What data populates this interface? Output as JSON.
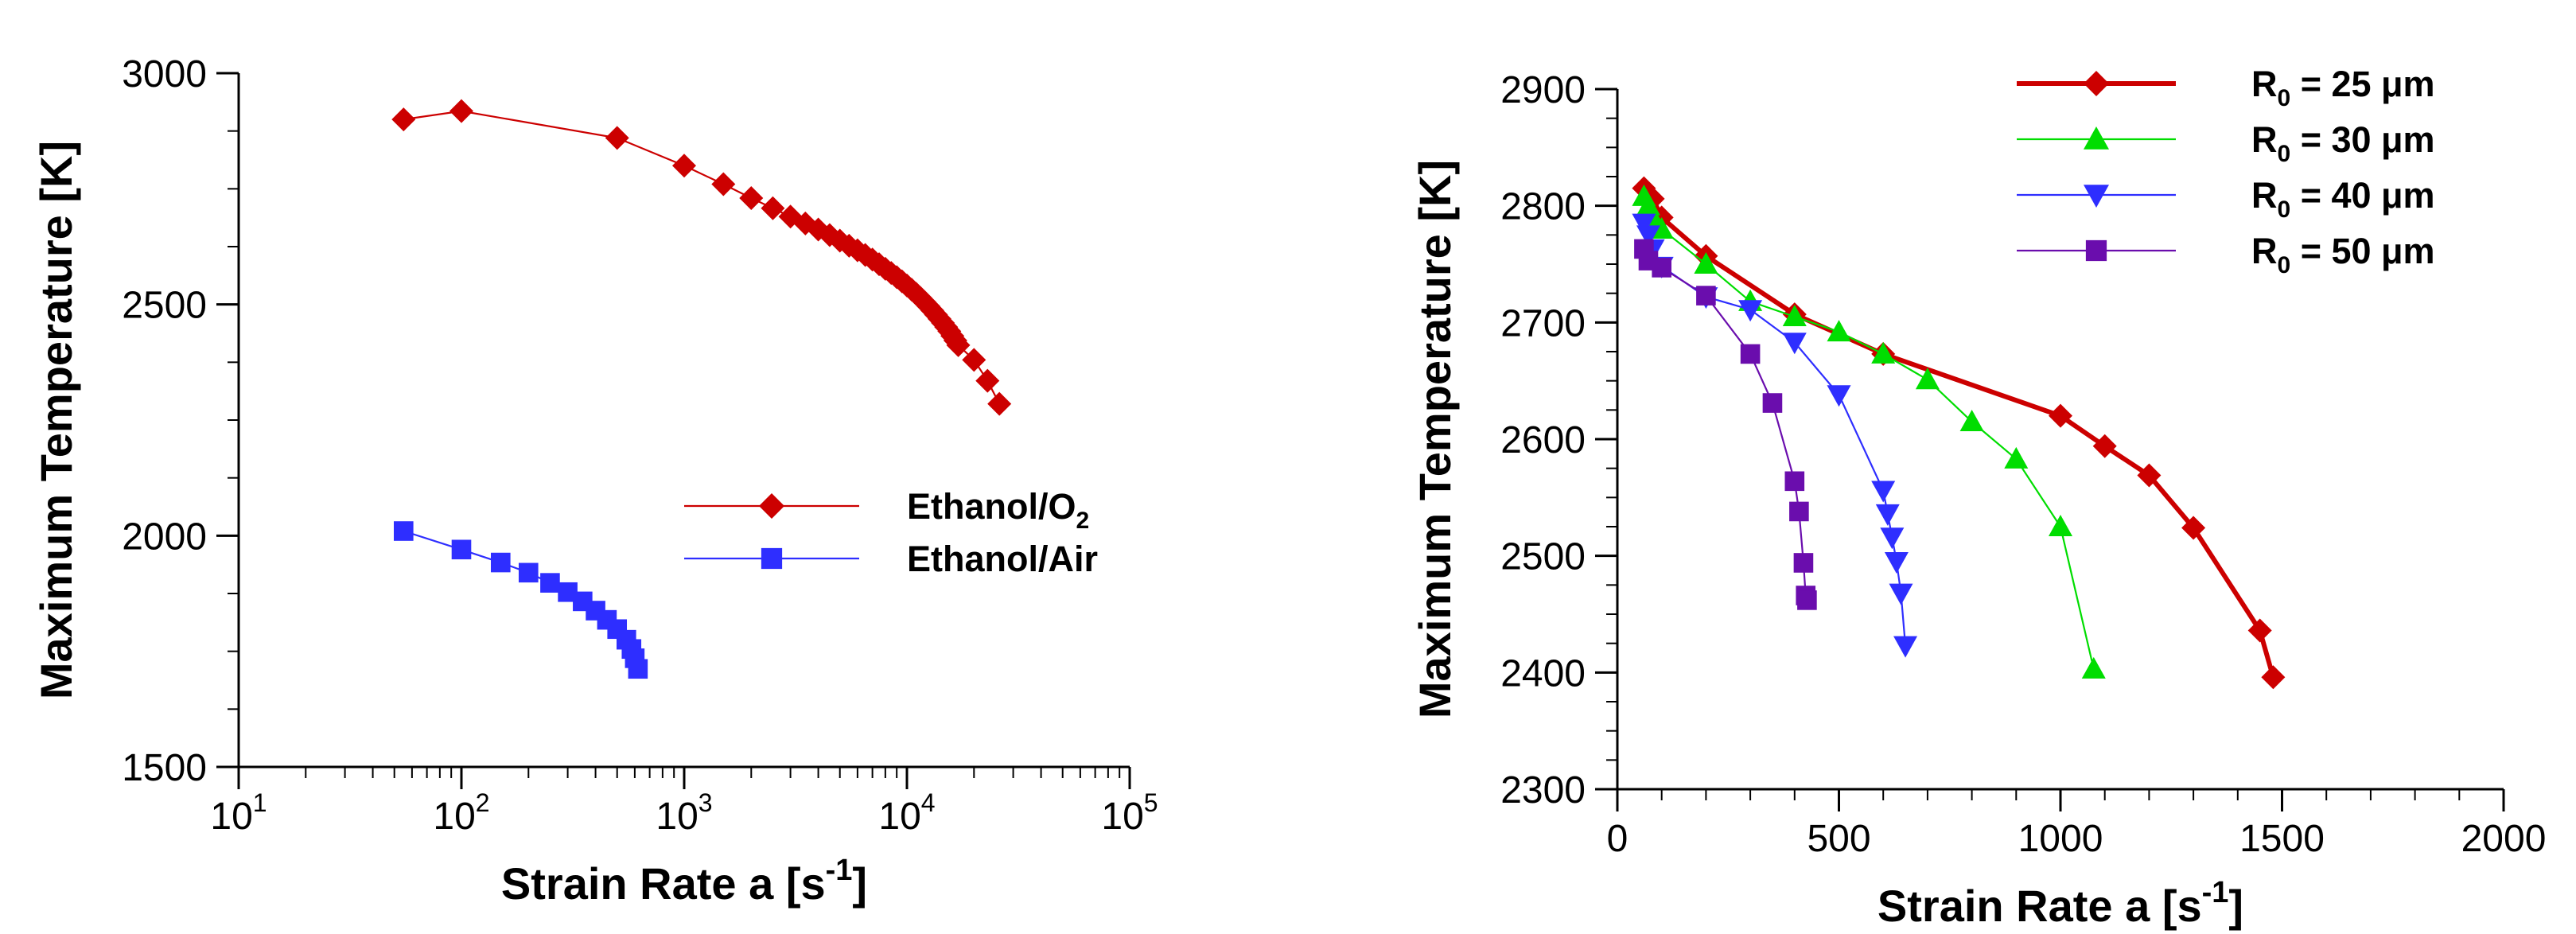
{
  "chart_data": [
    {
      "type": "line",
      "xscale": "log",
      "xlabel": "Strain Rate a [s",
      "xlabel_sup": "-1",
      "xlabel_end": "]",
      "ylabel": "Maximum Temperature [K]",
      "xlim": [
        10,
        100000
      ],
      "ylim": [
        1500,
        3000
      ],
      "x_ticks": [
        {
          "value": 10,
          "base": "10",
          "exp": "1"
        },
        {
          "value": 100,
          "base": "10",
          "exp": "2"
        },
        {
          "value": 1000,
          "base": "10",
          "exp": "3"
        },
        {
          "value": 10000,
          "base": "10",
          "exp": "4"
        },
        {
          "value": 100000,
          "base": "10",
          "exp": "5"
        }
      ],
      "y_ticks": [
        {
          "value": 1500,
          "label": "1500"
        },
        {
          "value": 2000,
          "label": "2000"
        },
        {
          "value": 2500,
          "label": "2500"
        },
        {
          "value": 3000,
          "label": "3000"
        }
      ],
      "legend_position": "center-right",
      "series": [
        {
          "name": "Ethanol/O",
          "name_sub": "2",
          "color": "#cc0000",
          "marker": "diamond",
          "x": [
            55,
            100,
            500,
            1000,
            1500,
            2000,
            2500,
            3000,
            3500,
            4000,
            4500,
            5000,
            5500,
            6000,
            6500,
            7000,
            7500,
            8000,
            8500,
            9000,
            9500,
            10000,
            10500,
            11000,
            11500,
            12000,
            12500,
            13000,
            13500,
            14000,
            14500,
            15000,
            15500,
            16000,
            16500,
            17000,
            20000,
            23000,
            26000
          ],
          "y": [
            2900,
            2918,
            2860,
            2800,
            2760,
            2730,
            2708,
            2690,
            2675,
            2662,
            2650,
            2638,
            2627,
            2617,
            2607,
            2597,
            2587,
            2577,
            2568,
            2559,
            2550,
            2541,
            2532,
            2523,
            2514,
            2505,
            2496,
            2487,
            2478,
            2469,
            2460,
            2451,
            2442,
            2432,
            2422,
            2412,
            2380,
            2335,
            2285
          ]
        },
        {
          "name": "Ethanol/Air",
          "color": "#2e2eff",
          "marker": "square",
          "x": [
            55,
            100,
            150,
            200,
            250,
            300,
            350,
            400,
            450,
            500,
            550,
            580,
            600,
            620
          ],
          "y": [
            2010,
            1970,
            1942,
            1920,
            1898,
            1878,
            1858,
            1838,
            1818,
            1798,
            1775,
            1755,
            1735,
            1712
          ]
        }
      ]
    },
    {
      "type": "line",
      "xscale": "linear",
      "xlabel": "Strain Rate a [s",
      "xlabel_sup": "-1",
      "xlabel_end": "]",
      "ylabel": "Maximum Temperature [K]",
      "xlim": [
        0,
        2000
      ],
      "ylim": [
        2300,
        2900
      ],
      "x_ticks": [
        {
          "value": 0,
          "label": "0"
        },
        {
          "value": 500,
          "label": "500"
        },
        {
          "value": 1000,
          "label": "1000"
        },
        {
          "value": 1500,
          "label": "1500"
        },
        {
          "value": 2000,
          "label": "2000"
        }
      ],
      "y_ticks": [
        {
          "value": 2300,
          "label": "2300"
        },
        {
          "value": 2400,
          "label": "2400"
        },
        {
          "value": 2500,
          "label": "2500"
        },
        {
          "value": 2600,
          "label": "2600"
        },
        {
          "value": 2700,
          "label": "2700"
        },
        {
          "value": 2800,
          "label": "2800"
        },
        {
          "value": 2900,
          "label": "2900"
        }
      ],
      "legend_position": "top-right",
      "series": [
        {
          "name": "R",
          "name_sub": "0",
          "name_rest": " = 25 μm",
          "color": "#cc0000",
          "marker": "diamond",
          "thick": true,
          "x": [
            60,
            80,
            100,
            200,
            400,
            600,
            1000,
            1100,
            1200,
            1300,
            1450,
            1480
          ],
          "y": [
            2815,
            2806,
            2790,
            2757,
            2707,
            2673,
            2620,
            2594,
            2569,
            2524,
            2436,
            2396
          ]
        },
        {
          "name": "R",
          "name_sub": "0",
          "name_rest": " = 30 μm",
          "color": "#00dd00",
          "marker": "triangle",
          "x": [
            60,
            70,
            80,
            100,
            200,
            300,
            400,
            500,
            600,
            700,
            800,
            900,
            1000,
            1075
          ],
          "y": [
            2808,
            2800,
            2790,
            2780,
            2750,
            2718,
            2705,
            2692,
            2673,
            2651,
            2615,
            2583,
            2525,
            2403
          ]
        },
        {
          "name": "R",
          "name_sub": "0",
          "name_rest": " = 40 μm",
          "color": "#2e2eff",
          "marker": "triangle-down",
          "x": [
            60,
            70,
            80,
            100,
            200,
            300,
            400,
            500,
            600,
            610,
            620,
            630,
            640,
            650
          ],
          "y": [
            2785,
            2775,
            2763,
            2748,
            2722,
            2711,
            2683,
            2638,
            2556,
            2536,
            2516,
            2495,
            2468,
            2423
          ]
        },
        {
          "name": "R",
          "name_sub": "0",
          "name_rest": " = 50 μm",
          "color": "#6a0dad",
          "marker": "square",
          "x": [
            60,
            70,
            100,
            200,
            300,
            350,
            400,
            410,
            420,
            425,
            428
          ],
          "y": [
            2763,
            2753,
            2747,
            2723,
            2673,
            2631,
            2564,
            2538,
            2494,
            2466,
            2462
          ]
        }
      ]
    }
  ]
}
